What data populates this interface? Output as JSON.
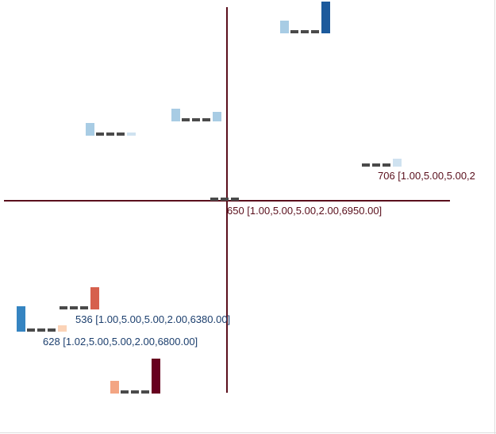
{
  "chart_data": {
    "type": "glyph-scatter",
    "title": "",
    "xlabel": "",
    "ylabel": "",
    "grid": false,
    "legend": "none",
    "axis_color": "#5a0f1c",
    "frame_color": "#dddddd",
    "dash_color": "#4a4a4a",
    "scale_colors": {
      "very_light_blue": "#cfe2f0",
      "light_blue": "#a8cce4",
      "blue": "#3584c1",
      "dark_blue": "#1c5a9c",
      "peach": "#fbd3b7",
      "salmon": "#f3a583",
      "red": "#d6604d",
      "dark_red": "#67001f"
    },
    "glyphs": [
      {
        "id": "g1",
        "bars": [
          {
            "color": "#a8cce4",
            "value": 0.4
          },
          {
            "color": "#1c5a9c",
            "value": 1.0
          }
        ],
        "label": ""
      },
      {
        "id": "g2",
        "bars": [
          {
            "color": "#a8cce4",
            "value": 0.4
          },
          {
            "color": "#a8cce4",
            "value": 0.3
          }
        ],
        "label": ""
      },
      {
        "id": "g3",
        "bars": [
          {
            "color": "#a8cce4",
            "value": 0.4
          },
          {
            "color": "#cfe2f0",
            "value": 0.1
          }
        ],
        "label": ""
      },
      {
        "id": "g4",
        "bars": [
          {
            "color": "#ffffff",
            "value": 0.0
          },
          {
            "color": "#cfe2f0",
            "value": 0.25
          }
        ],
        "label": "706 [1.00,5.00,5.00,2"
      },
      {
        "id": "g5",
        "bars": [
          {
            "color": "#ffffff",
            "value": 0.0
          },
          {
            "color": "#ffffff",
            "value": 0.0
          }
        ],
        "label": "650 [1.00,5.00,5.00,2.00,6950.00]"
      },
      {
        "id": "g6",
        "bars": [
          {
            "color": "#3584c1",
            "value": 0.8
          },
          {
            "color": "#fbd3b7",
            "value": 0.2
          }
        ],
        "label": "628 [1.02,5.00,5.00,2.00,6800.00]"
      },
      {
        "id": "g7",
        "bars": [
          {
            "color": "#ffffff",
            "value": 0.0
          },
          {
            "color": "#d6604d",
            "value": 0.7
          }
        ],
        "label": "536 [1.00,5.00,5.00,2.00,6380.00]"
      },
      {
        "id": "g8",
        "bars": [
          {
            "color": "#f3a583",
            "value": 0.4
          },
          {
            "color": "#67001f",
            "value": 1.1
          }
        ],
        "label": ""
      }
    ]
  }
}
